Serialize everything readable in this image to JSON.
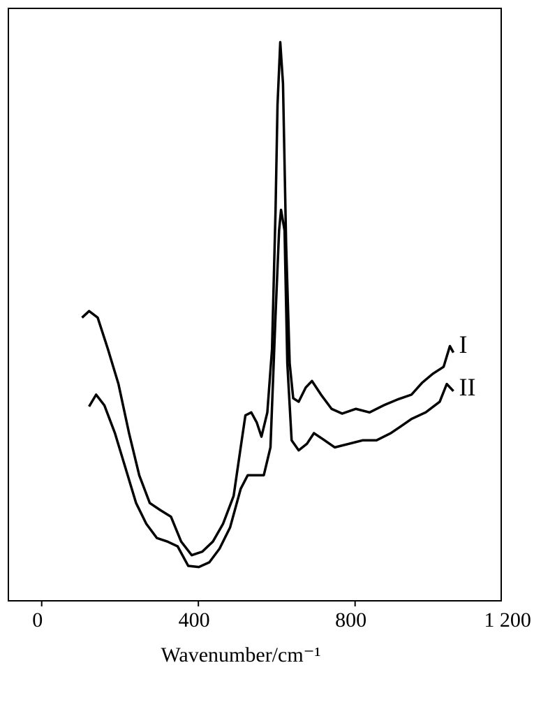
{
  "chart_data": {
    "type": "line",
    "x_label": "Wavenumber/cm⁻¹",
    "xlim": [
      -85,
      1173
    ],
    "xticks": [
      0,
      400,
      800,
      {
        "value": 1200,
        "label": "1 200"
      }
    ],
    "ylim": [
      0,
      100
    ],
    "series": [
      {
        "name": "I",
        "color": "#000000",
        "x": [
          103,
          121,
          143,
          169,
          196,
          223,
          249,
          276,
          303,
          330,
          356,
          383,
          410,
          437,
          463,
          490,
          508,
          520,
          535,
          549,
          561,
          576,
          588,
          597,
          602,
          609,
          616,
          624,
          633,
          642,
          656,
          674,
          690,
          713,
          740,
          767,
          802,
          837,
          873,
          909,
          944,
          971,
          998,
          1026,
          1042,
          1051
        ],
        "values": [
          47.8,
          48.9,
          47.8,
          42.5,
          36.6,
          28.3,
          21.2,
          16.5,
          15.3,
          14.2,
          10.0,
          7.7,
          8.3,
          10.0,
          13.0,
          17.7,
          25.9,
          31.3,
          31.8,
          30.1,
          27.7,
          31.8,
          42.5,
          66.0,
          83.7,
          94.3,
          87.3,
          60.1,
          40.1,
          34.2,
          33.6,
          36.0,
          37.1,
          34.8,
          32.4,
          31.6,
          32.4,
          31.8,
          33.0,
          34.0,
          34.8,
          36.8,
          38.3,
          39.5,
          43.0,
          41.9
        ]
      },
      {
        "name": "II",
        "color": "#000000",
        "x": [
          121,
          139,
          160,
          187,
          214,
          241,
          267,
          294,
          321,
          347,
          374,
          401,
          428,
          454,
          481,
          508,
          526,
          549,
          567,
          584,
          597,
          606,
          611,
          620,
          627,
          638,
          656,
          677,
          695,
          722,
          748,
          784,
          820,
          855,
          891,
          918,
          944,
          980,
          1016,
          1034,
          1051
        ],
        "values": [
          32.8,
          34.8,
          33.0,
          28.3,
          22.4,
          16.5,
          13.0,
          10.6,
          10.0,
          9.2,
          5.9,
          5.7,
          6.5,
          8.8,
          12.4,
          18.9,
          21.2,
          21.2,
          21.2,
          25.9,
          48.3,
          62.5,
          66.0,
          62.5,
          40.1,
          27.1,
          25.4,
          26.5,
          28.3,
          27.1,
          25.9,
          26.5,
          27.1,
          27.1,
          28.3,
          29.5,
          30.7,
          31.8,
          33.6,
          36.6,
          35.4
        ]
      }
    ]
  }
}
